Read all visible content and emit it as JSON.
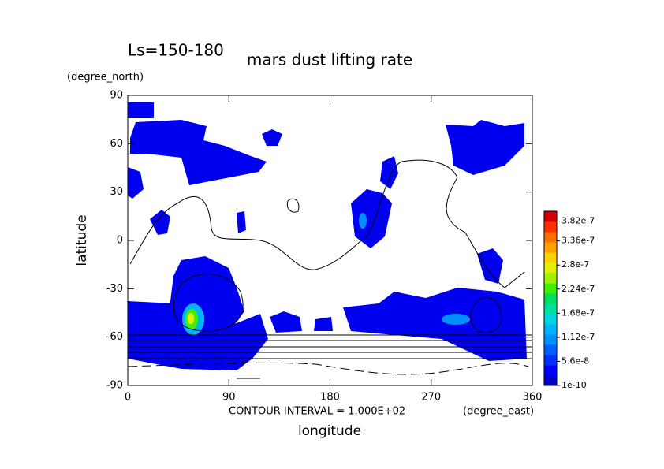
{
  "chart_data": {
    "type": "contour",
    "title": "mars dust lifting rate",
    "subtitle": "Ls=150-180",
    "x_label": "longitude",
    "y_label": "latitude",
    "x_unit": "(degree_east)",
    "y_unit": "(degree_north)",
    "annotation": "CONTOUR INTERVAL = 1.000E+02",
    "xlim": [
      0,
      360
    ],
    "xticks": [
      0,
      90,
      180,
      270,
      360
    ],
    "ylim": [
      -90,
      90
    ],
    "yticks": [
      -90,
      -60,
      -30,
      0,
      30,
      60,
      90
    ],
    "colorbar": {
      "lim": [
        0,
        4.05e-07
      ],
      "ticks": [
        1e-10,
        5.6e-08,
        1.12e-07,
        1.68e-07,
        2.24e-07,
        2.8e-07,
        3.36e-07,
        3.82e-07
      ],
      "colors": [
        "#0000c8",
        "#0000ff",
        "#0030ff",
        "#0060ff",
        "#0090ff",
        "#00b4ff",
        "#00d4e0",
        "#00e0a0",
        "#00e060",
        "#40f000",
        "#a0f000",
        "#e0f000",
        "#ffd000",
        "#ffa000",
        "#ff7000",
        "#ff3000",
        "#d80000"
      ]
    }
  }
}
